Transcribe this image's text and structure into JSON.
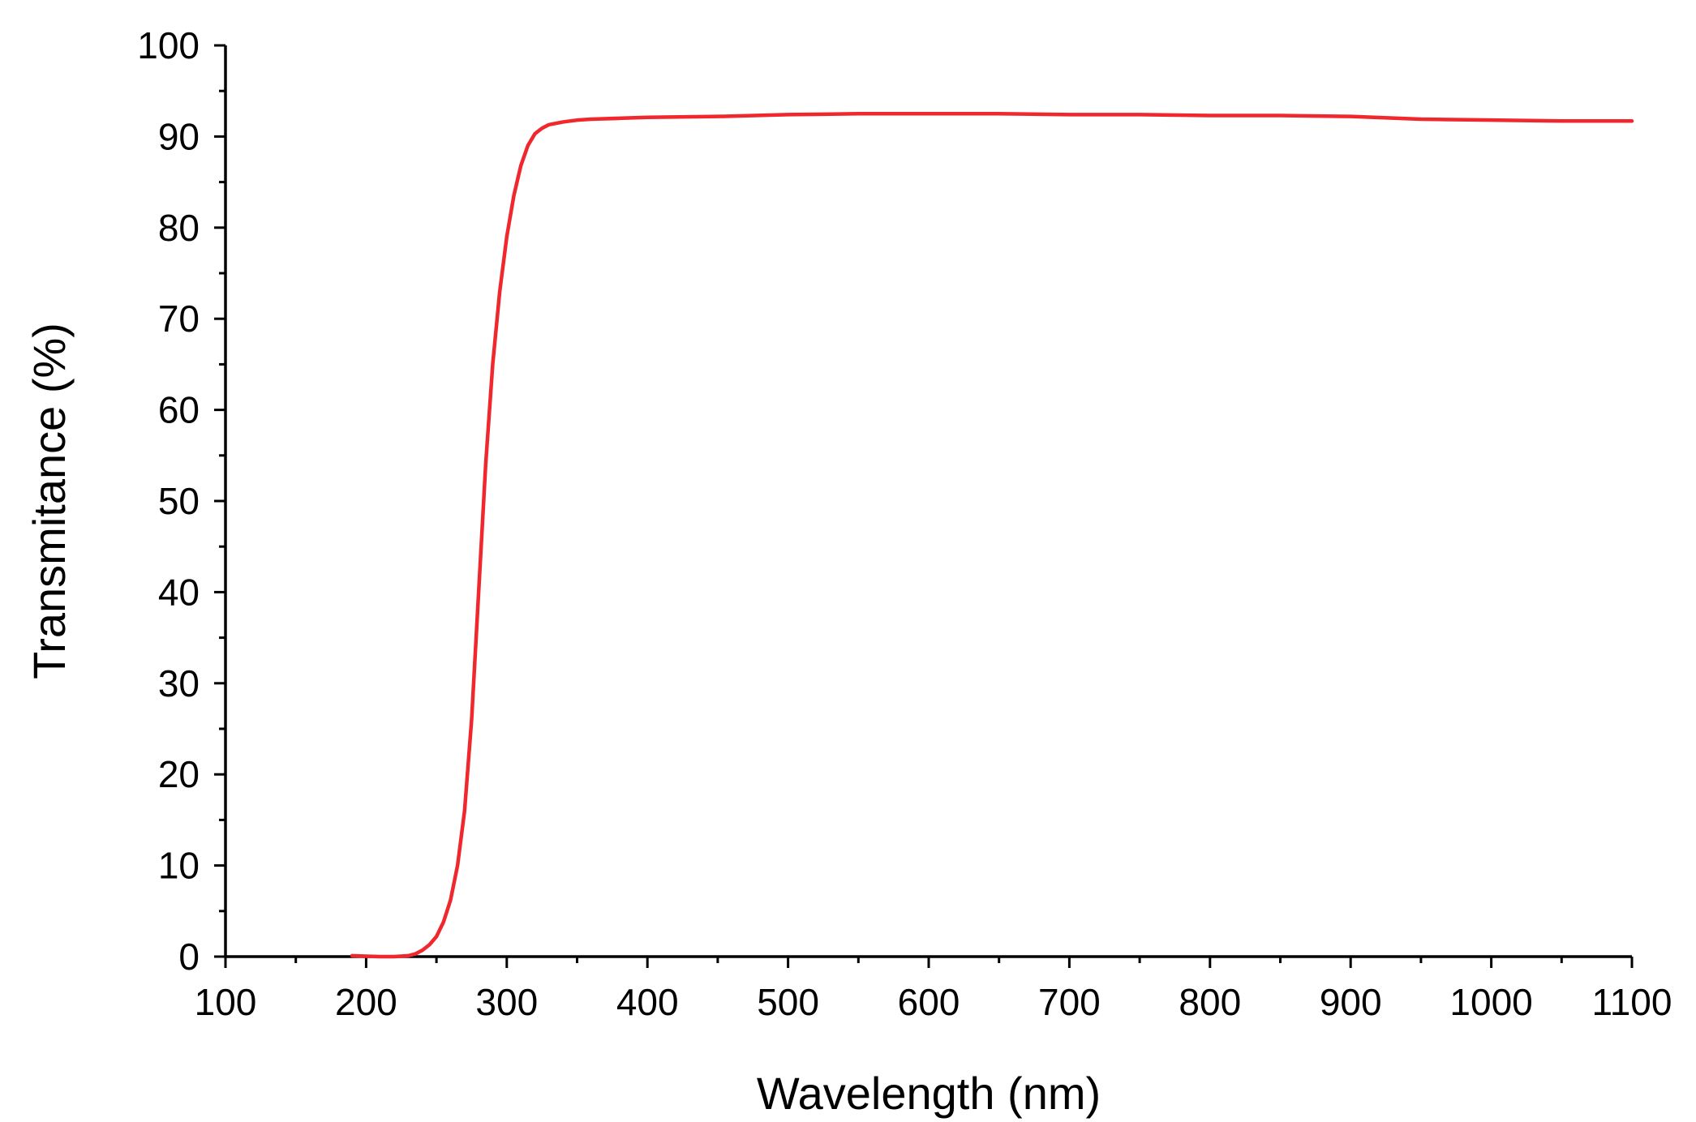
{
  "chart_data": {
    "type": "line",
    "title": "",
    "xlabel": "Wavelength (nm)",
    "ylabel": "Transmitance (%)",
    "xlim": [
      100,
      1100
    ],
    "ylim": [
      0,
      100
    ],
    "x_ticks": [
      100,
      200,
      300,
      400,
      500,
      600,
      700,
      800,
      900,
      1000,
      1100
    ],
    "x_tick_labels": [
      "100",
      "200",
      "300",
      "400",
      "500",
      "600",
      "700",
      "800",
      "900",
      "1000",
      "1100"
    ],
    "y_ticks": [
      0,
      10,
      20,
      30,
      40,
      50,
      60,
      70,
      80,
      90,
      100
    ],
    "y_tick_labels": [
      "0",
      "10",
      "20",
      "30",
      "40",
      "50",
      "60",
      "70",
      "80",
      "90",
      "100"
    ],
    "grid": false,
    "legend": "none",
    "series": [
      {
        "color": "#f0282d",
        "points": [
          [
            190,
            0.1
          ],
          [
            200,
            0.05
          ],
          [
            210,
            0.0
          ],
          [
            220,
            0.0
          ],
          [
            230,
            0.1
          ],
          [
            235,
            0.3
          ],
          [
            240,
            0.7
          ],
          [
            245,
            1.3
          ],
          [
            250,
            2.2
          ],
          [
            255,
            3.8
          ],
          [
            260,
            6.2
          ],
          [
            265,
            10.0
          ],
          [
            270,
            16.0
          ],
          [
            275,
            26.0
          ],
          [
            280,
            40.0
          ],
          [
            285,
            54.0
          ],
          [
            290,
            65.0
          ],
          [
            295,
            73.0
          ],
          [
            300,
            79.0
          ],
          [
            305,
            83.5
          ],
          [
            310,
            86.8
          ],
          [
            315,
            89.0
          ],
          [
            320,
            90.3
          ],
          [
            325,
            90.9
          ],
          [
            330,
            91.3
          ],
          [
            340,
            91.6
          ],
          [
            350,
            91.8
          ],
          [
            360,
            91.9
          ],
          [
            380,
            92.0
          ],
          [
            400,
            92.1
          ],
          [
            450,
            92.2
          ],
          [
            500,
            92.4
          ],
          [
            550,
            92.5
          ],
          [
            600,
            92.5
          ],
          [
            650,
            92.5
          ],
          [
            700,
            92.4
          ],
          [
            750,
            92.4
          ],
          [
            800,
            92.3
          ],
          [
            850,
            92.3
          ],
          [
            900,
            92.2
          ],
          [
            950,
            91.9
          ],
          [
            1000,
            91.8
          ],
          [
            1050,
            91.7
          ],
          [
            1100,
            91.7
          ]
        ]
      }
    ]
  }
}
